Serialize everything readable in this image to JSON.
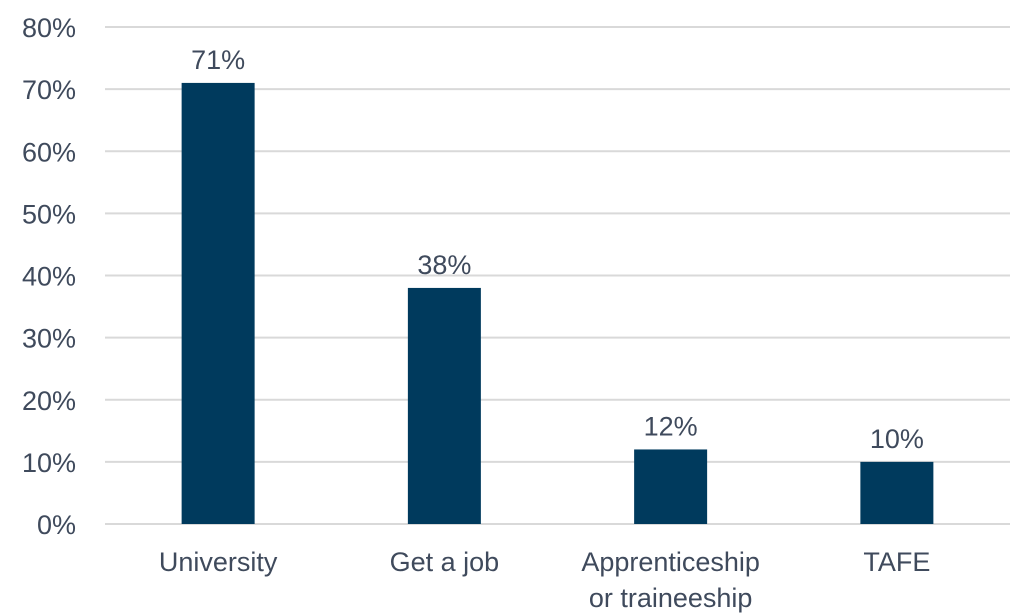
{
  "chart_data": {
    "type": "bar",
    "title": "",
    "xlabel": "",
    "ylabel": "",
    "categories": [
      [
        "University"
      ],
      [
        "Get a job"
      ],
      [
        "Apprenticeship",
        "or traineeship"
      ],
      [
        "TAFE"
      ]
    ],
    "values": [
      71,
      38,
      12,
      10
    ],
    "data_labels": [
      "71%",
      "38%",
      "12%",
      "10%"
    ],
    "ylim": [
      0,
      80
    ],
    "yticks": [
      0,
      10,
      20,
      30,
      40,
      50,
      60,
      70,
      80
    ],
    "ytick_labels": [
      "0%",
      "10%",
      "20%",
      "30%",
      "40%",
      "50%",
      "60%",
      "70%",
      "80%"
    ],
    "grid": true,
    "legend": "none",
    "colors": {
      "bar": "#003a5d",
      "grid": "#d9d9d9",
      "text": "#3f4a5c"
    }
  }
}
